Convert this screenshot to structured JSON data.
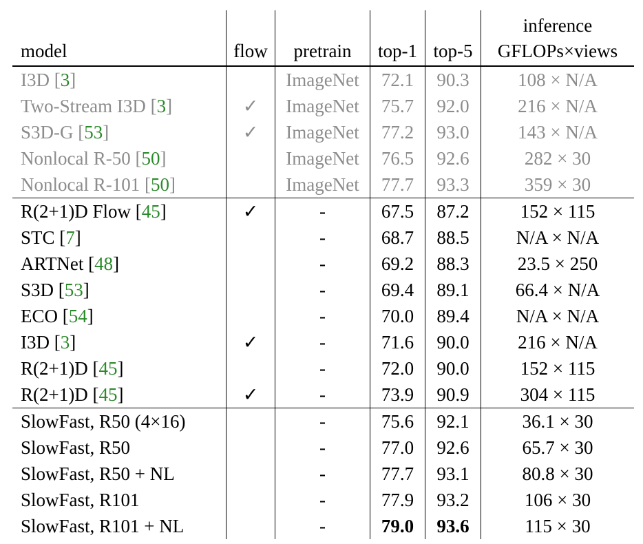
{
  "header": [
    "model",
    "flow",
    "pretrain",
    "top-1",
    "top-5",
    [
      "inference",
      "GFLOPs×views"
    ]
  ],
  "groups": [
    {
      "color": "#8c8c8c",
      "rows": [
        [
          "I3D [3]",
          null,
          "ImageNet",
          "72.1",
          "90.3",
          "108 × N/A"
        ],
        [
          "Two-Stream I3D [3]",
          "✓",
          "ImageNet",
          "75.7",
          "92.0",
          "216 × N/A"
        ],
        [
          "S3D-G [53]",
          "✓",
          "ImageNet",
          "77.2",
          "93.0",
          "143 × N/A"
        ],
        [
          "Nonlocal R-50 [50]",
          null,
          "ImageNet",
          "76.5",
          "92.6",
          "282 × 30"
        ],
        [
          "Nonlocal R-101 [50]",
          null,
          "ImageNet",
          "77.7",
          "93.3",
          "359 × 30"
        ]
      ]
    },
    {
      "color": "#000000",
      "rows": [
        [
          "R(2+1)D Flow [45]",
          "✓",
          "-",
          "67.5",
          "87.2",
          "152 × 115"
        ],
        [
          "STC [7]",
          null,
          "-",
          "68.7",
          "88.5",
          "N/A × N/A"
        ],
        [
          "ARTNet [48]",
          null,
          "-",
          "69.2",
          "88.3",
          "23.5 × 250"
        ],
        [
          "S3D [53]",
          null,
          "-",
          "69.4",
          "89.1",
          "66.4 × N/A"
        ],
        [
          "ECO [54]",
          null,
          "-",
          "70.0",
          "89.4",
          "N/A × N/A"
        ],
        [
          "I3D [3]",
          "✓",
          "-",
          "71.6",
          "90.0",
          "216 × N/A"
        ],
        [
          "R(2+1)D [45]",
          null,
          "-",
          "72.0",
          "90.0",
          "152 × 115"
        ],
        [
          "R(2+1)D [45]",
          "✓",
          "-",
          "73.9",
          "90.9",
          "304 × 115"
        ]
      ]
    },
    {
      "color": "#000000",
      "bold_cells": [
        [
          4,
          3
        ],
        [
          4,
          4
        ]
      ],
      "rows": [
        [
          "SlowFast, R50 (4×16)",
          null,
          "-",
          "75.6",
          "92.1",
          "36.1 × 30"
        ],
        [
          "SlowFast, R50",
          null,
          "-",
          "77.0",
          "92.6",
          "65.7 × 30"
        ],
        [
          "SlowFast, R50 + NL",
          null,
          "-",
          "77.7",
          "93.1",
          "80.8 × 30"
        ],
        [
          "SlowFast, R101",
          null,
          "-",
          "77.9",
          "93.2",
          "106 × 30"
        ],
        [
          "SlowFast, R101 + NL",
          null,
          "-",
          "79.0",
          "93.6",
          "115 × 30"
        ]
      ]
    }
  ]
}
